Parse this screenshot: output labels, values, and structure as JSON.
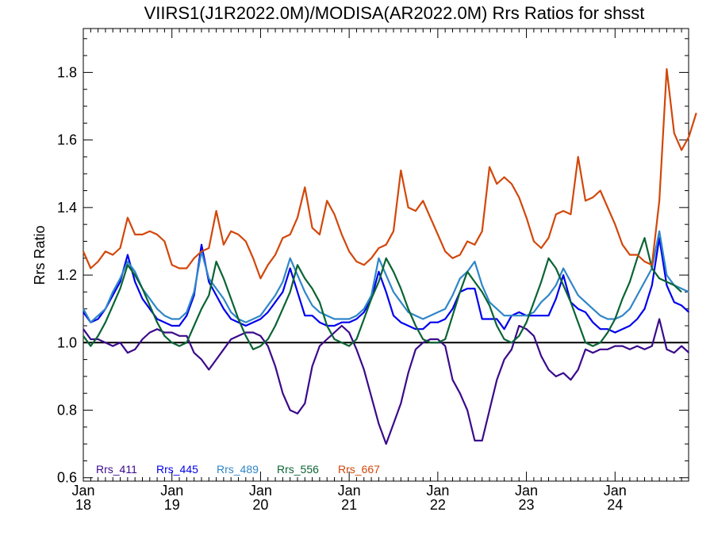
{
  "chart_data": {
    "type": "line",
    "title": "VIIRS1(J1R2022.0M)/MODISA(AR2022.0M)  Rrs Ratios for shsst",
    "ylabel": "Rrs Ratio",
    "xlabel": "",
    "ylim": [
      0.59,
      1.93
    ],
    "xlim": [
      2018.0,
      2024.83
    ],
    "y_ticks": [
      0.6,
      0.8,
      1.0,
      1.2,
      1.4,
      1.6,
      1.8
    ],
    "y_tick_labels": [
      "0.6",
      "0.8",
      "1.0",
      "1.2",
      "1.4",
      "1.6",
      "1.8"
    ],
    "x_ticks": [
      {
        "year": 2018,
        "month": "Jan",
        "yy": "18"
      },
      {
        "year": 2019,
        "month": "Jan",
        "yy": "19"
      },
      {
        "year": 2020,
        "month": "Jan",
        "yy": "20"
      },
      {
        "year": 2021,
        "month": "Jan",
        "yy": "21"
      },
      {
        "year": 2022,
        "month": "Jan",
        "yy": "22"
      },
      {
        "year": 2023,
        "month": "Jan",
        "yy": "23"
      },
      {
        "year": 2024,
        "month": "Jan",
        "yy": "24"
      }
    ],
    "reference_line": 1.0,
    "grid": false,
    "legend_position": "bottom-left",
    "series": [
      {
        "name": "Rrs_411",
        "color": "#3a0a8c",
        "values": [
          1.04,
          1.01,
          1.01,
          1.0,
          0.99,
          1.0,
          0.97,
          0.98,
          1.01,
          1.03,
          1.04,
          1.03,
          1.03,
          1.02,
          1.02,
          0.97,
          0.95,
          0.92,
          0.95,
          0.98,
          1.01,
          1.02,
          1.03,
          1.03,
          1.02,
          0.99,
          0.93,
          0.85,
          0.8,
          0.79,
          0.82,
          0.93,
          0.99,
          1.01,
          1.03,
          1.05,
          1.03,
          0.98,
          0.92,
          0.84,
          0.76,
          0.7,
          0.76,
          0.82,
          0.91,
          0.98,
          1.0,
          1.01,
          1.01,
          0.99,
          0.89,
          0.85,
          0.8,
          0.71,
          0.71,
          0.8,
          0.89,
          0.95,
          0.98,
          1.05,
          1.04,
          1.02,
          0.96,
          0.92,
          0.9,
          0.91,
          0.89,
          0.92,
          0.98,
          0.97,
          0.98,
          0.98,
          0.99,
          0.99,
          0.98,
          0.99,
          0.98,
          0.99,
          1.07,
          0.98,
          0.97,
          0.99,
          0.97
        ]
      },
      {
        "name": "Rrs_445",
        "color": "#0000ee",
        "values": [
          1.09,
          1.06,
          1.07,
          1.1,
          1.14,
          1.18,
          1.26,
          1.18,
          1.13,
          1.1,
          1.07,
          1.06,
          1.05,
          1.05,
          1.08,
          1.14,
          1.29,
          1.18,
          1.14,
          1.1,
          1.07,
          1.06,
          1.05,
          1.06,
          1.07,
          1.09,
          1.12,
          1.15,
          1.22,
          1.15,
          1.08,
          1.08,
          1.06,
          1.05,
          1.05,
          1.06,
          1.06,
          1.07,
          1.09,
          1.13,
          1.21,
          1.15,
          1.08,
          1.06,
          1.05,
          1.04,
          1.04,
          1.06,
          1.06,
          1.07,
          1.1,
          1.15,
          1.16,
          1.16,
          1.07,
          1.07,
          1.07,
          1.04,
          1.08,
          1.09,
          1.08,
          1.08,
          1.08,
          1.08,
          1.13,
          1.2,
          1.12,
          1.1,
          1.09,
          1.06,
          1.04,
          1.04,
          1.03,
          1.04,
          1.05,
          1.07,
          1.1,
          1.17,
          1.31,
          1.17,
          1.12,
          1.11,
          1.09
        ]
      },
      {
        "name": "Rrs_489",
        "color": "#2f86c8",
        "values": [
          1.1,
          1.06,
          1.08,
          1.1,
          1.15,
          1.19,
          1.24,
          1.21,
          1.16,
          1.13,
          1.1,
          1.08,
          1.07,
          1.07,
          1.09,
          1.15,
          1.27,
          1.19,
          1.16,
          1.13,
          1.09,
          1.07,
          1.06,
          1.07,
          1.08,
          1.11,
          1.14,
          1.18,
          1.25,
          1.2,
          1.15,
          1.11,
          1.09,
          1.08,
          1.07,
          1.07,
          1.07,
          1.08,
          1.1,
          1.14,
          1.25,
          1.2,
          1.15,
          1.12,
          1.09,
          1.08,
          1.07,
          1.08,
          1.09,
          1.1,
          1.14,
          1.19,
          1.21,
          1.24,
          1.17,
          1.12,
          1.1,
          1.08,
          1.08,
          1.08,
          1.08,
          1.09,
          1.12,
          1.14,
          1.17,
          1.22,
          1.18,
          1.14,
          1.12,
          1.1,
          1.08,
          1.07,
          1.07,
          1.08,
          1.1,
          1.14,
          1.18,
          1.22,
          1.33,
          1.2,
          1.17,
          1.16,
          1.15
        ]
      },
      {
        "name": "Rrs_556",
        "color": "#0a6434",
        "values": [
          1.02,
          0.99,
          1.02,
          1.06,
          1.11,
          1.16,
          1.23,
          1.2,
          1.16,
          1.11,
          1.06,
          1.02,
          1.0,
          0.99,
          1.0,
          1.05,
          1.1,
          1.14,
          1.24,
          1.19,
          1.13,
          1.07,
          1.02,
          0.98,
          0.99,
          1.01,
          1.05,
          1.1,
          1.15,
          1.23,
          1.19,
          1.16,
          1.12,
          1.05,
          1.01,
          1.0,
          0.99,
          1.01,
          1.07,
          1.13,
          1.18,
          1.25,
          1.21,
          1.16,
          1.1,
          1.05,
          1.01,
          1.0,
          1.0,
          1.01,
          1.08,
          1.15,
          1.21,
          1.18,
          1.15,
          1.11,
          1.05,
          1.01,
          1.0,
          1.02,
          1.06,
          1.12,
          1.18,
          1.25,
          1.22,
          1.17,
          1.12,
          1.06,
          1.0,
          0.99,
          1.0,
          1.03,
          1.07,
          1.13,
          1.18,
          1.25,
          1.31,
          1.22,
          1.19,
          1.18,
          1.17,
          1.15
        ]
      },
      {
        "name": "Rrs_667",
        "color": "#d2470a",
        "values": [
          1.27,
          1.22,
          1.24,
          1.27,
          1.26,
          1.28,
          1.37,
          1.32,
          1.32,
          1.33,
          1.32,
          1.3,
          1.23,
          1.22,
          1.22,
          1.25,
          1.27,
          1.28,
          1.39,
          1.29,
          1.33,
          1.32,
          1.3,
          1.25,
          1.19,
          1.23,
          1.26,
          1.31,
          1.32,
          1.37,
          1.46,
          1.34,
          1.32,
          1.42,
          1.38,
          1.32,
          1.27,
          1.24,
          1.23,
          1.25,
          1.28,
          1.29,
          1.33,
          1.51,
          1.4,
          1.39,
          1.42,
          1.37,
          1.32,
          1.27,
          1.25,
          1.26,
          1.3,
          1.29,
          1.33,
          1.52,
          1.47,
          1.49,
          1.47,
          1.43,
          1.37,
          1.3,
          1.28,
          1.31,
          1.38,
          1.39,
          1.38,
          1.55,
          1.42,
          1.43,
          1.45,
          1.4,
          1.35,
          1.29,
          1.26,
          1.26,
          1.24,
          1.23,
          1.42,
          1.81,
          1.62,
          1.57,
          1.61,
          1.68
        ]
      }
    ]
  }
}
